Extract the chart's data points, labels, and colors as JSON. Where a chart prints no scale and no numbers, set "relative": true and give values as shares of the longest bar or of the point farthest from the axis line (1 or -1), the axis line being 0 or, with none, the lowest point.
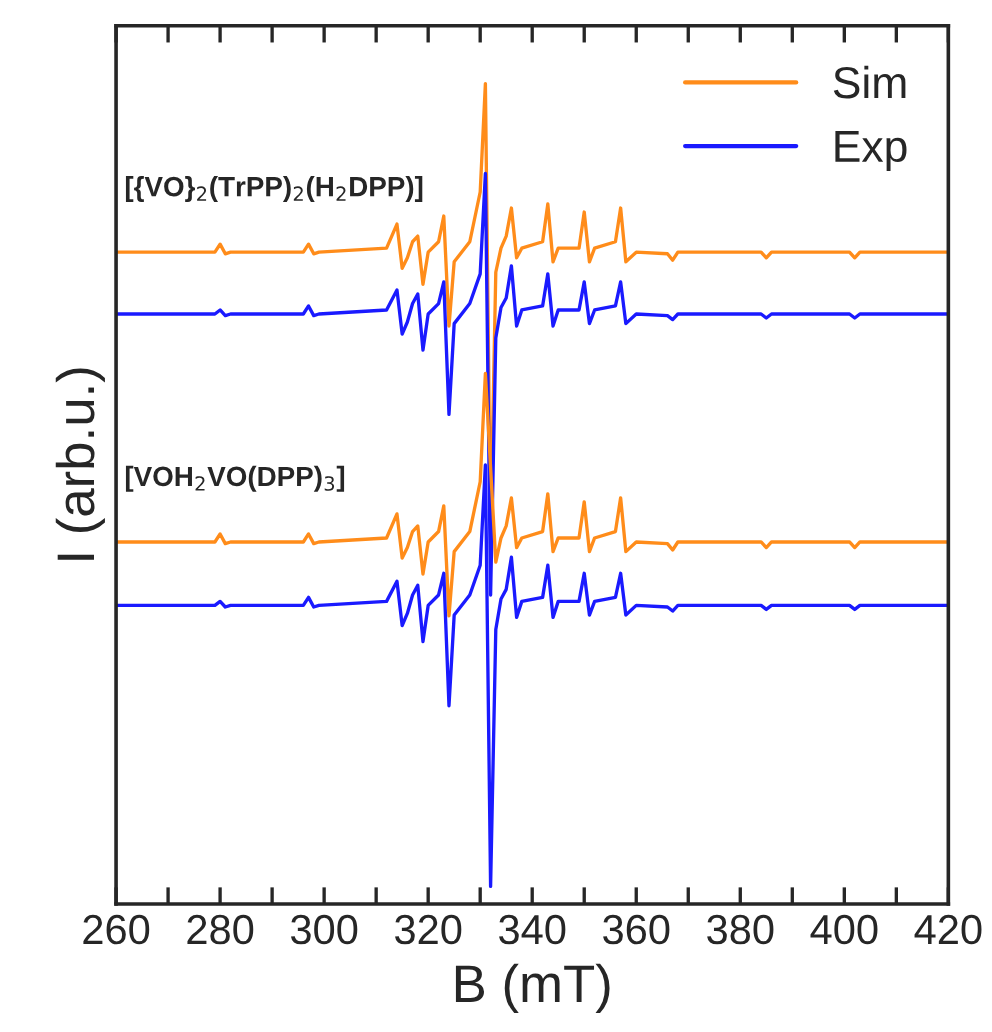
{
  "chart_data": {
    "type": "line",
    "relative": true,
    "xlabel": "B (mT)",
    "ylabel": "I (arb.u.)",
    "xlim": [
      260,
      420
    ],
    "xticks": [
      260,
      {
        "value": 270,
        "label": null
      },
      280,
      {
        "value": 290,
        "label": null
      },
      300,
      {
        "value": 310,
        "label": null
      },
      320,
      {
        "value": 330,
        "label": null
      },
      340,
      {
        "value": 350,
        "label": null
      },
      360,
      {
        "value": 370,
        "label": null
      },
      380,
      {
        "value": 390,
        "label": null
      },
      400,
      {
        "value": 410,
        "label": null
      },
      420
    ],
    "tick_labels": "x",
    "grid": false,
    "legend": "top right",
    "x": [
      260,
      279,
      280,
      281,
      282,
      296,
      297,
      298,
      299,
      312,
      314,
      315,
      316,
      317,
      318,
      319,
      320,
      322,
      323,
      324,
      325,
      328,
      330,
      331,
      332,
      333,
      334,
      335,
      336,
      337,
      338,
      342,
      343,
      344,
      345,
      349,
      350,
      351,
      352,
      356,
      357,
      358,
      360,
      366,
      367,
      368,
      384,
      385,
      386,
      401,
      402,
      403,
      420
    ],
    "series": [
      {
        "name": "Sim",
        "color": "#ff8c1a",
        "values": [
          0.79,
          0.79,
          0.8,
          0.788,
          0.79,
          0.79,
          0.8,
          0.788,
          0.79,
          0.795,
          0.825,
          0.77,
          0.783,
          0.803,
          0.81,
          0.75,
          0.79,
          0.803,
          0.835,
          0.698,
          0.778,
          0.803,
          0.865,
          1.0,
          0.44,
          0.765,
          0.795,
          0.81,
          0.845,
          0.783,
          0.795,
          0.803,
          0.85,
          0.778,
          0.795,
          0.795,
          0.84,
          0.778,
          0.795,
          0.803,
          0.845,
          0.778,
          0.79,
          0.788,
          0.78,
          0.79,
          0.79,
          0.783,
          0.79,
          0.79,
          0.783,
          0.79,
          0.79
        ]
      },
      {
        "name": "Exp",
        "color": "#1a1aff",
        "values": [
          0.713,
          0.713,
          0.718,
          0.711,
          0.713,
          0.713,
          0.723,
          0.711,
          0.713,
          0.718,
          0.743,
          0.688,
          0.703,
          0.726,
          0.738,
          0.668,
          0.713,
          0.726,
          0.753,
          0.588,
          0.701,
          0.726,
          0.763,
          0.888,
          0.363,
          0.683,
          0.721,
          0.733,
          0.773,
          0.698,
          0.718,
          0.723,
          0.763,
          0.698,
          0.718,
          0.718,
          0.753,
          0.701,
          0.718,
          0.723,
          0.753,
          0.701,
          0.713,
          0.711,
          0.706,
          0.713,
          0.713,
          0.708,
          0.713,
          0.713,
          0.708,
          0.713,
          0.713
        ]
      },
      {
        "color": "#ff8c1a",
        "values": [
          0.429,
          0.429,
          0.439,
          0.427,
          0.429,
          0.429,
          0.439,
          0.427,
          0.429,
          0.434,
          0.464,
          0.409,
          0.422,
          0.442,
          0.449,
          0.389,
          0.429,
          0.442,
          0.474,
          0.337,
          0.417,
          0.442,
          0.504,
          0.639,
          null,
          0.404,
          0.434,
          0.449,
          0.484,
          0.422,
          0.434,
          0.442,
          0.489,
          0.417,
          0.434,
          0.434,
          0.479,
          0.417,
          0.434,
          0.442,
          0.484,
          0.417,
          0.429,
          0.427,
          0.419,
          0.429,
          0.429,
          0.422,
          0.429,
          0.429,
          0.422,
          0.429,
          0.429
        ]
      },
      {
        "color": "#1a1aff",
        "values": [
          0.35,
          0.35,
          0.355,
          0.348,
          0.35,
          0.35,
          0.36,
          0.348,
          0.35,
          0.355,
          0.38,
          0.325,
          0.34,
          0.363,
          0.375,
          0.305,
          0.35,
          0.363,
          0.39,
          0.225,
          0.338,
          0.363,
          0.4,
          0.525,
          0.0,
          0.32,
          0.358,
          0.37,
          0.41,
          0.335,
          0.355,
          0.36,
          0.4,
          0.335,
          0.355,
          0.355,
          0.39,
          0.338,
          0.355,
          0.36,
          0.39,
          0.338,
          0.35,
          0.348,
          0.343,
          0.35,
          0.35,
          0.345,
          0.35,
          0.35,
          0.345,
          0.35,
          0.35
        ]
      }
    ],
    "annotations": [
      "[{VO}$_{2}$(TrPP)$_{2}$(H$_{2}$DPP)]",
      "[VOH$_{2}$VO(DPP)$_{3}$]"
    ]
  }
}
